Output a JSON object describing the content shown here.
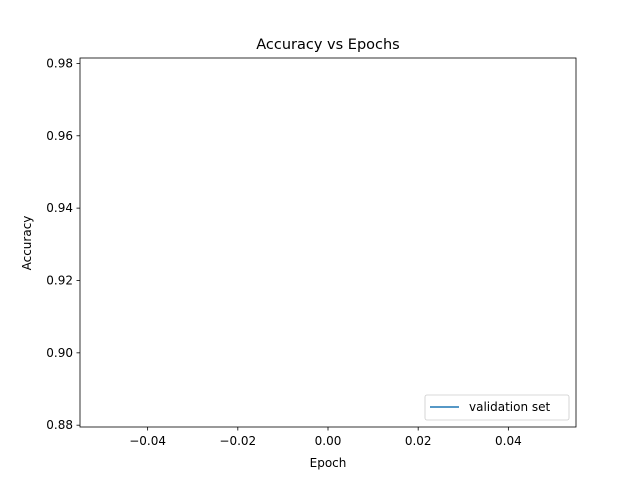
{
  "chart_data": {
    "type": "line",
    "title": "Accuracy vs Epochs",
    "xlabel": "Epoch",
    "ylabel": "Accuracy",
    "xlim": [
      -0.055,
      0.055
    ],
    "ylim": [
      0.8795,
      0.9815
    ],
    "x_ticks": [
      -0.04,
      -0.02,
      0.0,
      0.02,
      0.04
    ],
    "x_tick_labels": [
      "−0.04",
      "−0.02",
      "0.00",
      "0.02",
      "0.04"
    ],
    "y_ticks": [
      0.88,
      0.9,
      0.92,
      0.94,
      0.96,
      0.98
    ],
    "y_tick_labels": [
      "0.88",
      "0.90",
      "0.92",
      "0.94",
      "0.96",
      "0.98"
    ],
    "grid": false,
    "legend_position": "lower-right",
    "series": [
      {
        "name": "validation set",
        "color": "#1f77b4",
        "x": [],
        "y": []
      }
    ]
  }
}
